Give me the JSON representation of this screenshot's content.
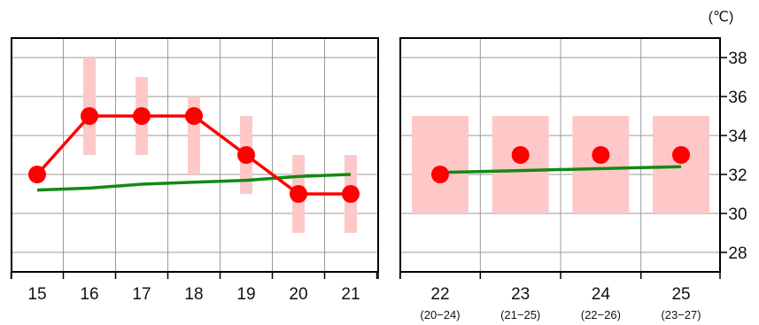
{
  "chart_data": {
    "type": "line",
    "unit": "(℃)",
    "ylim": [
      27,
      39
    ],
    "yticks": [
      "28",
      "30",
      "32",
      "34",
      "36",
      "38"
    ],
    "grid": true,
    "colors": {
      "forecast": "#ff0000",
      "normal": "#138a13",
      "range": "#ffc8c8",
      "axis": "#000000",
      "grid": "#9a9a9a"
    },
    "panels": [
      {
        "categories": [
          "15",
          "16",
          "17",
          "18",
          "19",
          "20",
          "21"
        ],
        "sublabels": [],
        "forecast": [
          32,
          35,
          35,
          35,
          33,
          31,
          31
        ],
        "range_low": [
          null,
          33,
          33,
          32,
          31,
          29,
          29
        ],
        "range_high": [
          null,
          38,
          37,
          36,
          35,
          33,
          33
        ],
        "normal": [
          31.2,
          31.3,
          31.5,
          31.6,
          31.7,
          31.9,
          32.0
        ],
        "connect_forecast": true
      },
      {
        "categories": [
          "22",
          "23",
          "24",
          "25"
        ],
        "sublabels": [
          "(20−24)",
          "(21−25)",
          "(22−26)",
          "(23−27)"
        ],
        "forecast": [
          32,
          33,
          33,
          33
        ],
        "range_low": [
          30,
          30,
          30,
          30
        ],
        "range_high": [
          35,
          35,
          35,
          35
        ],
        "normal": [
          32.1,
          32.2,
          32.3,
          32.4
        ],
        "connect_forecast": false
      }
    ]
  }
}
